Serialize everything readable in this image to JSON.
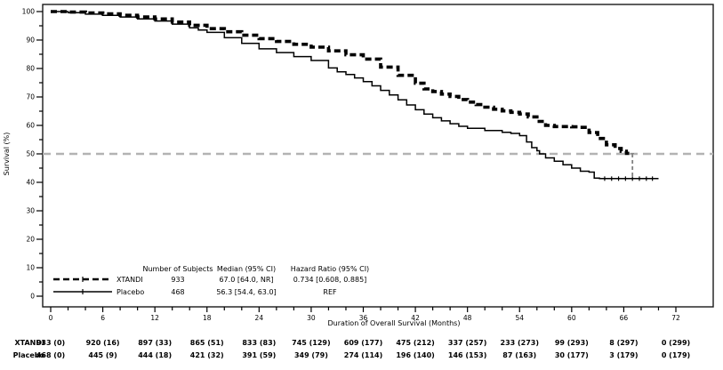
{
  "chart_data": {
    "type": "line",
    "subtype": "kaplan-meier-step",
    "title": "",
    "xlabel": "Duration of Overall Survival (Months)",
    "ylabel": "Survival (%)",
    "xlim": [
      0,
      72
    ],
    "ylim": [
      0,
      100
    ],
    "x_major_tick_step": 6,
    "x_minor_tick_step": 2,
    "y_major_tick_step": 10,
    "y_minor_tick_step": 5,
    "grid": "off",
    "reference_line_y": 50,
    "median_drop_line": {
      "x": 67.0,
      "from_y": 50,
      "to_y": 41
    },
    "series": [
      {
        "name": "XTANDI",
        "line_style": "dashed-thick",
        "color": "#000000",
        "points": [
          [
            0,
            100
          ],
          [
            2,
            99.8
          ],
          [
            4,
            99.5
          ],
          [
            6,
            99.2
          ],
          [
            8,
            98.7
          ],
          [
            10,
            98.1
          ],
          [
            12,
            97.4
          ],
          [
            14,
            96.3
          ],
          [
            16,
            95.2
          ],
          [
            18,
            94.0
          ],
          [
            20,
            92.9
          ],
          [
            22,
            91.7
          ],
          [
            24,
            90.5
          ],
          [
            26,
            89.5
          ],
          [
            28,
            88.5
          ],
          [
            30,
            87.5
          ],
          [
            32,
            86.2
          ],
          [
            34,
            84.8
          ],
          [
            36,
            83.3
          ],
          [
            38,
            80.5
          ],
          [
            40,
            77.6
          ],
          [
            42,
            74.8
          ],
          [
            43,
            72.8
          ],
          [
            44,
            71.9
          ],
          [
            45,
            71.0
          ],
          [
            46,
            70.2
          ],
          [
            47,
            69.1
          ],
          [
            48,
            68.2
          ],
          [
            49,
            67.3
          ],
          [
            50,
            66.4
          ],
          [
            51,
            65.7
          ],
          [
            52,
            65.1
          ],
          [
            53,
            64.6
          ],
          [
            54,
            64.0
          ],
          [
            55,
            63.0
          ],
          [
            56,
            61.4
          ],
          [
            57,
            60.0
          ],
          [
            58,
            59.6
          ],
          [
            60,
            59.5
          ],
          [
            61,
            59.3
          ],
          [
            62,
            57.5
          ],
          [
            63,
            55.4
          ],
          [
            64,
            53.2
          ],
          [
            65,
            51.9
          ],
          [
            65.7,
            50.9
          ],
          [
            66.3,
            50.2
          ],
          [
            67,
            50.0
          ]
        ],
        "censor_marks": []
      },
      {
        "name": "Placebo",
        "line_style": "solid",
        "color": "#000000",
        "points": [
          [
            0,
            100
          ],
          [
            2,
            99.6
          ],
          [
            4,
            99.1
          ],
          [
            6,
            98.7
          ],
          [
            8,
            98.1
          ],
          [
            10,
            97.4
          ],
          [
            12,
            96.7
          ],
          [
            14,
            95.6
          ],
          [
            16,
            94.3
          ],
          [
            17,
            93.5
          ],
          [
            18,
            92.7
          ],
          [
            20,
            90.8
          ],
          [
            22,
            88.8
          ],
          [
            24,
            86.9
          ],
          [
            26,
            85.6
          ],
          [
            28,
            84.2
          ],
          [
            30,
            82.8
          ],
          [
            32,
            80.2
          ],
          [
            33,
            78.8
          ],
          [
            34,
            77.9
          ],
          [
            35,
            76.7
          ],
          [
            36,
            75.4
          ],
          [
            37,
            73.9
          ],
          [
            38,
            72.3
          ],
          [
            39,
            70.7
          ],
          [
            40,
            69.0
          ],
          [
            41,
            67.2
          ],
          [
            42,
            65.5
          ],
          [
            43,
            64.0
          ],
          [
            44,
            62.7
          ],
          [
            45,
            61.6
          ],
          [
            46,
            60.6
          ],
          [
            47,
            59.7
          ],
          [
            48,
            59.0
          ],
          [
            50,
            58.2
          ],
          [
            52,
            57.6
          ],
          [
            53,
            57.2
          ],
          [
            54,
            56.4
          ],
          [
            54.8,
            54.2
          ],
          [
            55.4,
            52.2
          ],
          [
            56,
            51.1
          ],
          [
            56.3,
            50.0
          ],
          [
            57,
            48.6
          ],
          [
            58,
            47.4
          ],
          [
            59,
            46.2
          ],
          [
            60,
            45.0
          ],
          [
            61,
            43.9
          ],
          [
            62,
            43.6
          ],
          [
            62.6,
            41.5
          ],
          [
            63.2,
            41.3
          ],
          [
            70,
            41.3
          ]
        ],
        "censor_marks": [
          [
            63.8,
            41.3
          ],
          [
            64.6,
            41.3
          ],
          [
            65.4,
            41.3
          ],
          [
            66.2,
            41.3
          ],
          [
            67.0,
            41.3
          ],
          [
            67.8,
            41.3
          ],
          [
            68.6,
            41.3
          ],
          [
            69.3,
            41.3
          ]
        ]
      }
    ],
    "legend": {
      "position": "inside-bottom-left",
      "columns": [
        "Number of Subjects",
        "Median (95% CI)",
        "Hazard Ratio (95% CI)"
      ],
      "rows": [
        {
          "name": "XTANDI",
          "values": [
            "933",
            "67.0 [64.0, NR]",
            "0.734 [0.608, 0.885]"
          ]
        },
        {
          "name": "Placebo",
          "values": [
            "468",
            "56.3 [54.4, 63.0]",
            "REF"
          ]
        }
      ]
    },
    "at_risk_table": {
      "months": [
        0,
        6,
        12,
        18,
        24,
        30,
        36,
        42,
        48,
        54,
        60,
        66,
        72
      ],
      "rows": [
        {
          "name": "XTANDI",
          "values": [
            "933 (0)",
            "920 (16)",
            "897 (33)",
            "865 (51)",
            "833 (83)",
            "745 (129)",
            "609 (177)",
            "475 (212)",
            "337 (257)",
            "233 (273)",
            "99 (293)",
            "8 (297)",
            "0 (299)"
          ]
        },
        {
          "name": "Placebo",
          "values": [
            "468 (0)",
            "445 (9)",
            "444 (18)",
            "421 (32)",
            "391 (59)",
            "349 (79)",
            "274 (114)",
            "196 (140)",
            "146 (153)",
            "87 (163)",
            "30 (177)",
            "3 (179)",
            "0 (179)"
          ]
        }
      ]
    },
    "colors": {
      "curve": "#000000",
      "reference_line": "#b3b3b3",
      "median_line": "#808080",
      "frame": "#1a1a1a",
      "text": "#000000",
      "background": "#ffffff"
    }
  }
}
